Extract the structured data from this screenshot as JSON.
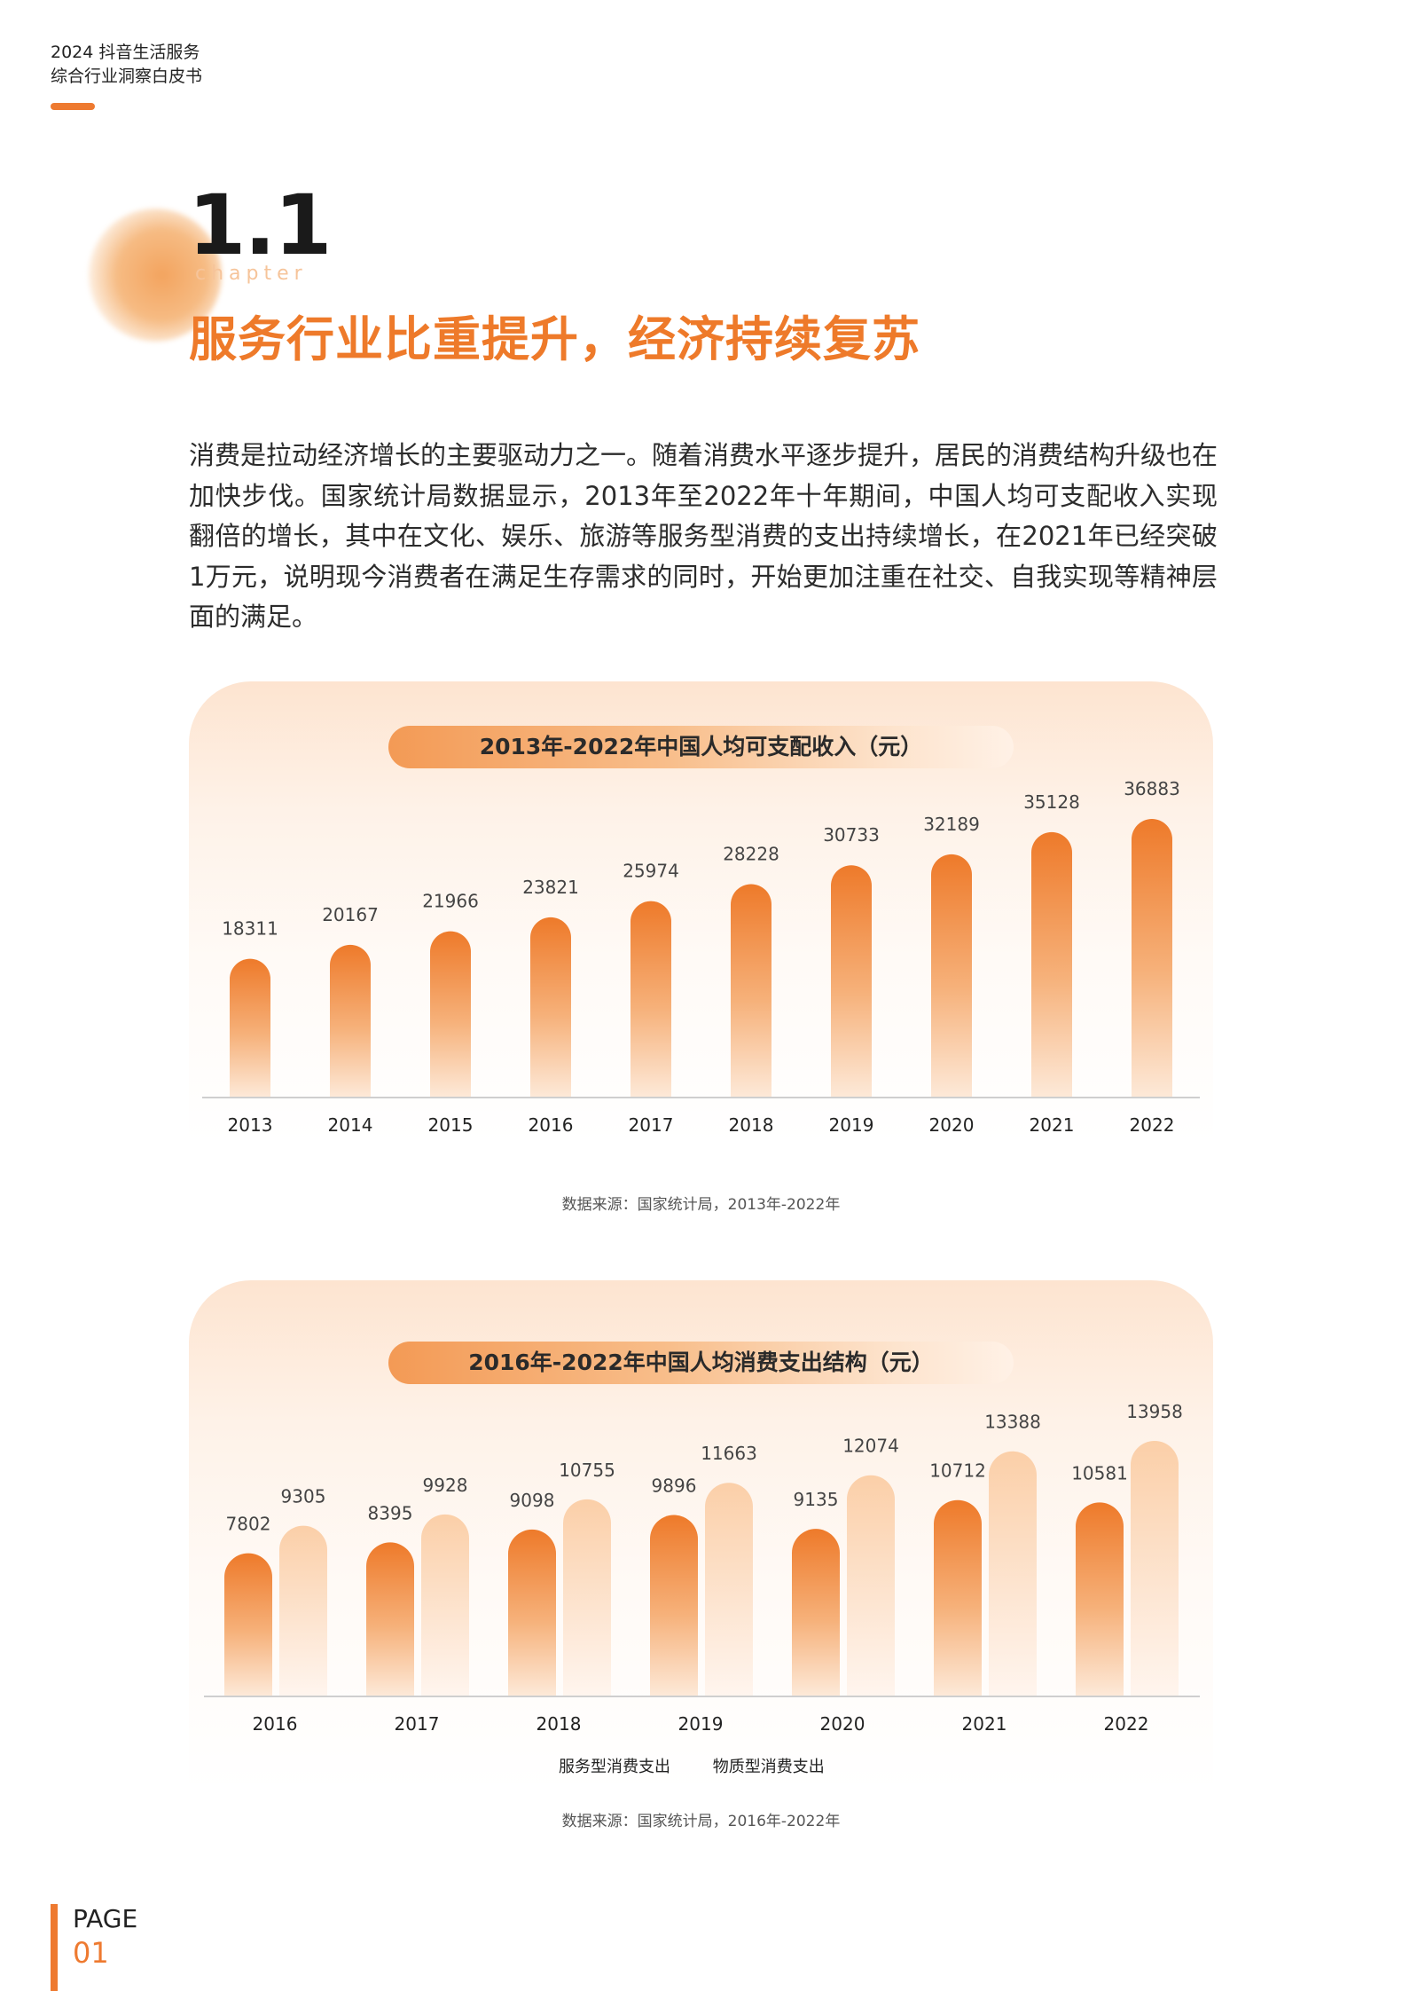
{
  "header": {
    "line1": "2024 抖音生活服务",
    "line2": "综合行业洞察白皮书"
  },
  "chapter": {
    "number": "1.1",
    "word": "chapter",
    "title": "服务行业比重提升，经济持续复苏"
  },
  "body_text": "消费是拉动经济增长的主要驱动力之一。随着消费水平逐步提升，居民的消费结构升级也在加快步伐。国家统计局数据显示，2013年至2022年十年期间，中国人均可支配收入实现翻倍的增长，其中在文化、娱乐、旅游等服务型消费的支出持续增长，在2021年已经突破1万元，说明现今消费者在满足生存需求的同时，开始更加注重在社交、自我实现等精神层面的满足。",
  "chart_data": [
    {
      "type": "bar",
      "title": "2013年-2022年中国人均可支配收入（元）",
      "categories": [
        "2013",
        "2014",
        "2015",
        "2016",
        "2017",
        "2018",
        "2019",
        "2020",
        "2021",
        "2022"
      ],
      "values": [
        18311,
        20167,
        21966,
        23821,
        25974,
        28228,
        30733,
        32189,
        35128,
        36883
      ],
      "ylim": [
        0,
        40000
      ],
      "grid": false,
      "source": "数据来源：国家统计局，2013年-2022年"
    },
    {
      "type": "bar",
      "title": "2016年-2022年中国人均消费支出结构（元）",
      "categories": [
        "2016",
        "2017",
        "2018",
        "2019",
        "2020",
        "2021",
        "2022"
      ],
      "series": [
        {
          "name": "服务型消费支出",
          "values": [
            7802,
            8395,
            9098,
            9896,
            9135,
            10712,
            10581
          ]
        },
        {
          "name": "物质型消费支出",
          "values": [
            9305,
            9928,
            10755,
            11663,
            12074,
            13388,
            13958
          ]
        }
      ],
      "ylim": [
        0,
        16000
      ],
      "grid": false,
      "legend": "bottom",
      "source": "数据来源：国家统计局，2016年-2022年"
    }
  ],
  "colors": {
    "accent": "#ee7a30",
    "bar_top": "#ee7a2a",
    "bar_light_top": "#fbd2ae"
  },
  "footer": {
    "page_label": "PAGE",
    "page_number": "01"
  }
}
